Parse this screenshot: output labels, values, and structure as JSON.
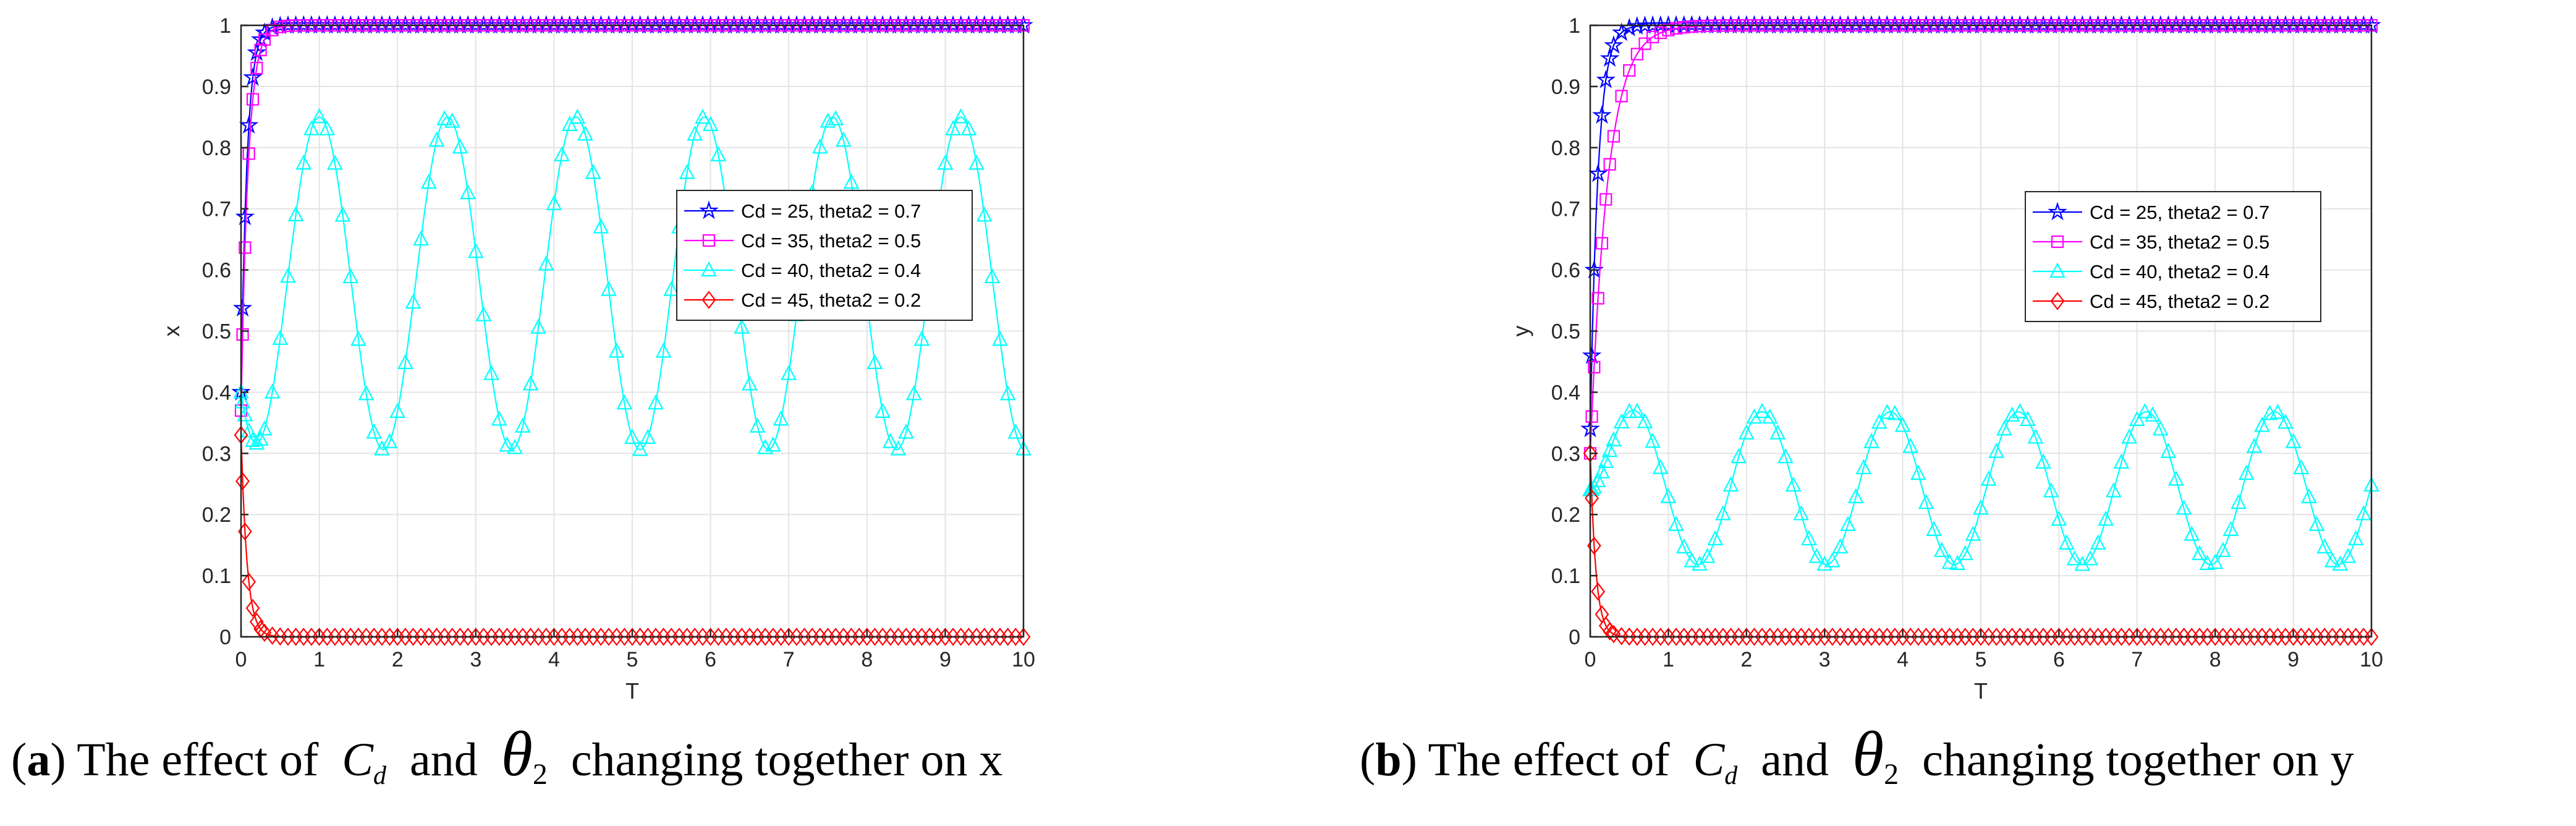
{
  "chart_data": [
    {
      "type": "line",
      "panel": "a",
      "xlabel": "T",
      "ylabel": "x",
      "xlim": [
        0,
        10
      ],
      "ylim": [
        0,
        1
      ],
      "xticks": [
        "0",
        "1",
        "2",
        "3",
        "4",
        "5",
        "6",
        "7",
        "8",
        "9",
        "10"
      ],
      "yticks": [
        "0",
        "0.1",
        "0.2",
        "0.3",
        "0.4",
        "0.5",
        "0.6",
        "0.7",
        "0.8",
        "0.9",
        "1"
      ],
      "grid": true,
      "legend_position": "right-middle",
      "series": [
        {
          "name": "Cd = 25, theta2 = 0.7",
          "color": "#0000ff",
          "marker": "star",
          "model": "logistic",
          "start": 0.4,
          "end": 1.0,
          "rate": 13.0
        },
        {
          "name": "Cd = 35, theta2 = 0.5",
          "color": "#ff00ff",
          "marker": "square",
          "model": "logistic",
          "start": 0.37,
          "end": 1.0,
          "rate": 11.0
        },
        {
          "name": "Cd = 40, theta2 = 0.4",
          "color": "#00ffff",
          "marker": "triangle",
          "model": "oscillation",
          "start": 0.4,
          "center": 0.578,
          "amplitude": 0.272,
          "period": 1.64,
          "peak_time": 1.0
        },
        {
          "name": "Cd = 45, theta2 = 0.2",
          "color": "#ff0000",
          "marker": "diamond",
          "model": "decay",
          "start": 0.33,
          "end": 0.0,
          "rate": 13.0
        }
      ]
    },
    {
      "type": "line",
      "panel": "b",
      "xlabel": "T",
      "ylabel": "y",
      "xlim": [
        0,
        10
      ],
      "ylim": [
        0,
        1
      ],
      "xticks": [
        "0",
        "1",
        "2",
        "3",
        "4",
        "5",
        "6",
        "7",
        "8",
        "9",
        "10"
      ],
      "yticks": [
        "0",
        "0.1",
        "0.2",
        "0.3",
        "0.4",
        "0.5",
        "0.6",
        "0.7",
        "0.8",
        "0.9",
        "1"
      ],
      "grid": true,
      "legend_position": "right-middle",
      "series": [
        {
          "name": "Cd = 25, theta2 = 0.7",
          "color": "#0000ff",
          "marker": "star",
          "model": "logistic",
          "start": 0.34,
          "end": 1.0,
          "rate": 10.0
        },
        {
          "name": "Cd = 35, theta2 = 0.5",
          "color": "#ff00ff",
          "marker": "square",
          "model": "logistic",
          "start": 0.3,
          "end": 1.0,
          "rate": 4.5
        },
        {
          "name": "Cd = 40, theta2 = 0.4",
          "color": "#00ffff",
          "marker": "triangle",
          "model": "oscillation",
          "start": 0.24,
          "center": 0.243,
          "amplitude": 0.125,
          "period": 1.64,
          "peak_time": 2.2
        },
        {
          "name": "Cd = 45, theta2 = 0.2",
          "color": "#ff0000",
          "marker": "diamond",
          "model": "decay",
          "start": 0.3,
          "end": 0.0,
          "rate": 14.0
        }
      ]
    }
  ],
  "captions": {
    "a": {
      "label": "a",
      "pre": "The effect of",
      "symbol1": "C",
      "sub1": "d",
      "mid": "and",
      "symbol2": "θ",
      "sub2": "2",
      "post": "changing together on x"
    },
    "b": {
      "label": "b",
      "pre": "The effect of",
      "symbol1": "C",
      "sub1": "d",
      "mid": "and",
      "symbol2": "θ",
      "sub2": "2",
      "post": "changing together on y"
    }
  }
}
